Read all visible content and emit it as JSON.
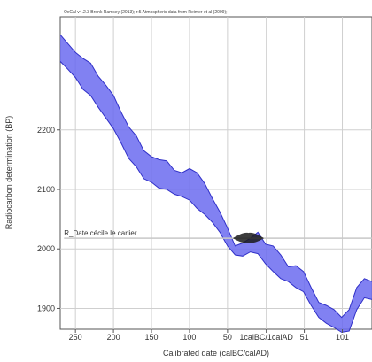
{
  "header": {
    "text": "OxCal v4.2.3 Bronk Ramsey (2013); r:5 Atmospheric data from Reimer et al (2009);"
  },
  "chart_data": {
    "type": "area",
    "title": "",
    "xlabel": "Calibrated date (calBC/calAD)",
    "ylabel": "Radiocarbon determination (BP)",
    "xlim": [
      -270,
      140
    ],
    "ylim": [
      1865,
      2390
    ],
    "x_ticks": [
      {
        "value": -250,
        "label": "250"
      },
      {
        "value": -200,
        "label": "200"
      },
      {
        "value": -150,
        "label": "150"
      },
      {
        "value": -100,
        "label": "100"
      },
      {
        "value": -50,
        "label": "50"
      },
      {
        "value": 1,
        "label": "1calBC/1calAD"
      },
      {
        "value": 51,
        "label": "51"
      },
      {
        "value": 101,
        "label": "101"
      }
    ],
    "y_ticks": [
      {
        "value": 1900,
        "label": "1900"
      },
      {
        "value": 2000,
        "label": "2000"
      },
      {
        "value": 2100,
        "label": "2100"
      },
      {
        "value": 2200,
        "label": "2200"
      }
    ],
    "grid": true,
    "series": [
      {
        "kind": "calibration-band",
        "color": "#6b6bf0",
        "edge_color": "#3030c8",
        "x": [
          -270,
          -260,
          -250,
          -240,
          -230,
          -220,
          -210,
          -200,
          -190,
          -180,
          -170,
          -160,
          -150,
          -140,
          -130,
          -120,
          -110,
          -100,
          -90,
          -80,
          -70,
          -60,
          -50,
          -40,
          -30,
          -20,
          -10,
          0,
          10,
          20,
          30,
          40,
          50,
          60,
          70,
          80,
          90,
          100,
          110,
          120,
          130,
          140
        ],
        "upper": [
          2360,
          2345,
          2330,
          2320,
          2312,
          2290,
          2275,
          2258,
          2230,
          2205,
          2190,
          2165,
          2155,
          2150,
          2148,
          2132,
          2128,
          2135,
          2128,
          2110,
          2085,
          2062,
          2035,
          2005,
          2010,
          2018,
          2028,
          2008,
          2005,
          1990,
          1970,
          1972,
          1962,
          1935,
          1910,
          1905,
          1898,
          1885,
          1898,
          1935,
          1950,
          1945
        ],
        "lower": [
          2315,
          2302,
          2288,
          2268,
          2258,
          2238,
          2220,
          2202,
          2178,
          2152,
          2138,
          2118,
          2112,
          2102,
          2100,
          2092,
          2088,
          2082,
          2068,
          2058,
          2045,
          2028,
          2005,
          1990,
          1988,
          1995,
          1992,
          1975,
          1962,
          1950,
          1945,
          1935,
          1928,
          1905,
          1885,
          1875,
          1868,
          1860,
          1862,
          1898,
          1918,
          1915
        ]
      }
    ],
    "annotations": [
      {
        "text": "R_Date cécile le carlier",
        "x": -265,
        "y": 2018,
        "line_x_end": 140,
        "dist_x_start": -43,
        "dist_x_end": -2,
        "dist_color": "#1a1a1a"
      }
    ]
  }
}
